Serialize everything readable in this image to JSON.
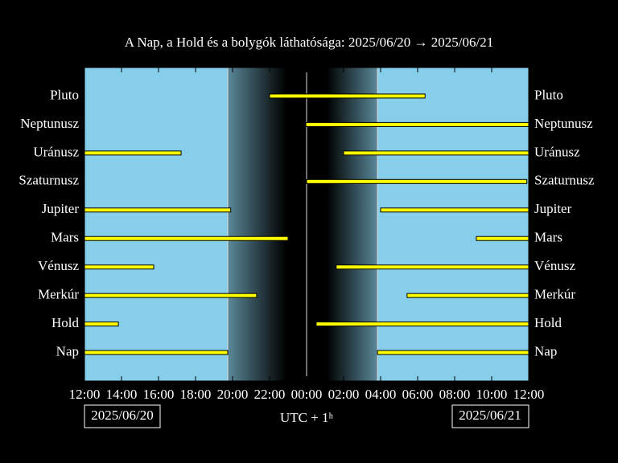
{
  "chart_data": {
    "type": "visibility",
    "title": "A Nap, a Hold és a bolygók láthatósága: 2025/06/20 → 2025/06/21",
    "xlabel": "UTC + 1ʰ",
    "start_date": "2025/06/20",
    "end_date": "2025/06/21",
    "xlim": [
      0,
      24
    ],
    "xticks": [
      {
        "value": 0,
        "label": "12:00"
      },
      {
        "value": 2,
        "label": "14:00"
      },
      {
        "value": 4,
        "label": "16:00"
      },
      {
        "value": 6,
        "label": "18:00"
      },
      {
        "value": 8,
        "label": "20:00"
      },
      {
        "value": 10,
        "label": "22:00"
      },
      {
        "value": 12,
        "label": "00:00"
      },
      {
        "value": 14,
        "label": "02:00"
      },
      {
        "value": 16,
        "label": "04:00"
      },
      {
        "value": 18,
        "label": "06:00"
      },
      {
        "value": 20,
        "label": "08:00"
      },
      {
        "value": 22,
        "label": "10:00"
      },
      {
        "value": 24,
        "label": "12:00"
      }
    ],
    "sunset": 7.74,
    "dark_start": 10.9,
    "midnight": 12,
    "dark_end": 13.1,
    "sunrise": 15.83,
    "sky_color": "#87ceeb",
    "bar_color": "#ffff00",
    "series": [
      {
        "name": "Pluto",
        "intervals": [
          [
            10.0,
            18.4
          ]
        ]
      },
      {
        "name": "Neptunusz",
        "intervals": [
          [
            11.96,
            24
          ]
        ]
      },
      {
        "name": "Uránusz",
        "intervals": [
          [
            0,
            5.22
          ],
          [
            14.0,
            24
          ]
        ]
      },
      {
        "name": "Szaturnusz",
        "intervals": [
          [
            12.0,
            23.9
          ]
        ]
      },
      {
        "name": "Jupiter",
        "intervals": [
          [
            0,
            7.9
          ],
          [
            16.0,
            24
          ]
        ]
      },
      {
        "name": "Mars",
        "intervals": [
          [
            0,
            11.0
          ],
          [
            21.17,
            24
          ]
        ]
      },
      {
        "name": "Vénusz",
        "intervals": [
          [
            0,
            3.74
          ],
          [
            13.6,
            24
          ]
        ]
      },
      {
        "name": "Merkúr",
        "intervals": [
          [
            0,
            9.3
          ],
          [
            17.43,
            24
          ]
        ]
      },
      {
        "name": "Hold",
        "intervals": [
          [
            0,
            1.83
          ],
          [
            12.52,
            24
          ]
        ]
      },
      {
        "name": "Nap",
        "intervals": [
          [
            0,
            7.74
          ],
          [
            15.83,
            24
          ]
        ]
      }
    ]
  }
}
